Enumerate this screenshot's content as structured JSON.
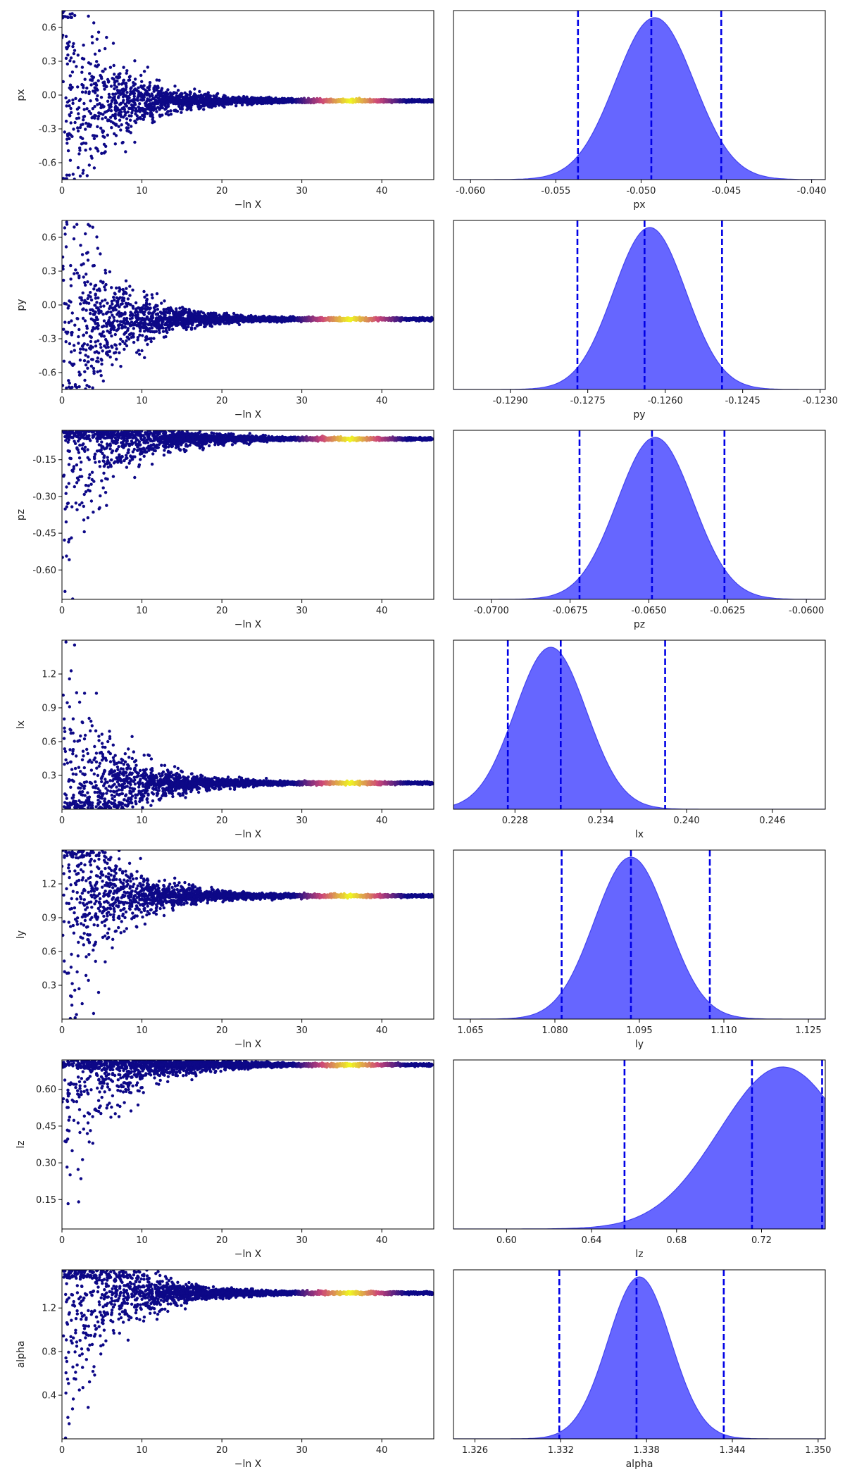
{
  "chart_data": [
    {
      "type": "scatter",
      "param": "px",
      "trace": {
        "xlabel": "−ln X",
        "ylabel": "px",
        "xlim": [
          0,
          46.5
        ],
        "ylim": [
          -0.75,
          0.75
        ],
        "xticks": [
          "0",
          "10",
          "20",
          "30",
          "40"
        ],
        "xtick_values": [
          0,
          10,
          20,
          30,
          40
        ],
        "yticks": [
          "-0.6",
          "-0.3",
          "0.0",
          "0.3",
          "0.6"
        ],
        "ytick_values": [
          -0.6,
          -0.3,
          0,
          0.3,
          0.6
        ],
        "converge": -0.05
      },
      "posterior": {
        "xlabel": "px",
        "xlim": [
          -0.061,
          -0.0392
        ],
        "xticks": [
          "-0.060",
          "-0.055",
          "-0.050",
          "-0.045",
          "-0.040"
        ],
        "xtick_values": [
          -0.06,
          -0.055,
          -0.05,
          -0.045,
          -0.04
        ],
        "mean": -0.0492,
        "sigma": 0.0023,
        "quantiles": [
          -0.0537,
          -0.0494,
          -0.0453
        ]
      }
    },
    {
      "type": "scatter",
      "param": "py",
      "trace": {
        "xlabel": "−ln X",
        "ylabel": "py",
        "xlim": [
          0,
          46.5
        ],
        "ylim": [
          -0.75,
          0.75
        ],
        "xticks": [
          "0",
          "10",
          "20",
          "30",
          "40"
        ],
        "xtick_values": [
          0,
          10,
          20,
          30,
          40
        ],
        "yticks": [
          "-0.6",
          "-0.3",
          "0.0",
          "0.3",
          "0.6"
        ],
        "ytick_values": [
          -0.6,
          -0.3,
          0,
          0.3,
          0.6
        ],
        "converge": -0.126
      },
      "posterior": {
        "xlabel": "py",
        "xlim": [
          -0.1301,
          -0.1229
        ],
        "xticks": [
          "-0.1290",
          "-0.1275",
          "-0.1260",
          "-0.1245",
          "-0.1230"
        ],
        "xtick_values": [
          -0.129,
          -0.1275,
          -0.126,
          -0.1245,
          -0.123
        ],
        "mean": -0.1263,
        "sigma": 0.0007,
        "quantiles": [
          -0.1277,
          -0.1264,
          -0.1249
        ]
      }
    },
    {
      "type": "scatter",
      "param": "pz",
      "trace": {
        "xlabel": "−ln X",
        "ylabel": "pz",
        "xlim": [
          0,
          46.5
        ],
        "ylim": [
          -0.72,
          -0.03
        ],
        "xticks": [
          "0",
          "10",
          "20",
          "30",
          "40"
        ],
        "xtick_values": [
          0,
          10,
          20,
          30,
          40
        ],
        "yticks": [
          "-0.60",
          "-0.45",
          "-0.30",
          "-0.15"
        ],
        "ytick_values": [
          -0.6,
          -0.45,
          -0.3,
          -0.15
        ],
        "converge": -0.065
      },
      "posterior": {
        "xlabel": "pz",
        "xlim": [
          -0.0712,
          -0.0594
        ],
        "xticks": [
          "-0.0700",
          "-0.0675",
          "-0.0650",
          "-0.0625",
          "-0.0600"
        ],
        "xtick_values": [
          -0.07,
          -0.0675,
          -0.065,
          -0.0625,
          -0.06
        ],
        "mean": -0.0648,
        "sigma": 0.0012,
        "quantiles": [
          -0.0672,
          -0.0649,
          -0.0626
        ]
      }
    },
    {
      "type": "scatter",
      "param": "lx",
      "trace": {
        "xlabel": "−ln X",
        "ylabel": "lx",
        "xlim": [
          0,
          46.5
        ],
        "ylim": [
          0,
          1.5
        ],
        "xticks": [
          "0",
          "10",
          "20",
          "30",
          "40"
        ],
        "xtick_values": [
          0,
          10,
          20,
          30,
          40
        ],
        "yticks": [
          "0.3",
          "0.6",
          "0.9",
          "1.2"
        ],
        "ytick_values": [
          0.3,
          0.6,
          0.9,
          1.2
        ],
        "converge": 0.232
      },
      "posterior": {
        "xlabel": "lx",
        "xlim": [
          0.2237,
          0.2497
        ],
        "xticks": [
          "0.228",
          "0.234",
          "0.240",
          "0.246"
        ],
        "xtick_values": [
          0.228,
          0.234,
          0.24,
          0.246
        ],
        "mean": 0.2305,
        "sigma": 0.0025,
        "quantiles": [
          0.2275,
          0.2312,
          0.2385
        ]
      }
    },
    {
      "type": "scatter",
      "param": "ly",
      "trace": {
        "xlabel": "−ln X",
        "ylabel": "ly",
        "xlim": [
          0,
          46.5
        ],
        "ylim": [
          0,
          1.5
        ],
        "xticks": [
          "0",
          "10",
          "20",
          "30",
          "40"
        ],
        "xtick_values": [
          0,
          10,
          20,
          30,
          40
        ],
        "yticks": [
          "0.3",
          "0.6",
          "0.9",
          "1.2"
        ],
        "ytick_values": [
          0.3,
          0.6,
          0.9,
          1.2
        ],
        "converge": 1.094
      },
      "posterior": {
        "xlabel": "ly",
        "xlim": [
          1.062,
          1.128
        ],
        "xticks": [
          "1.065",
          "1.080",
          "1.095",
          "1.110",
          "1.125"
        ],
        "xtick_values": [
          1.065,
          1.08,
          1.095,
          1.11,
          1.125
        ],
        "mean": 1.0935,
        "sigma": 0.0065,
        "quantiles": [
          1.0812,
          1.0935,
          1.1075
        ]
      }
    },
    {
      "type": "scatter",
      "param": "lz",
      "trace": {
        "xlabel": "−ln X",
        "ylabel": "lz",
        "xlim": [
          0,
          46.5
        ],
        "ylim": [
          0.03,
          0.72
        ],
        "xticks": [
          "0",
          "10",
          "20",
          "30",
          "40"
        ],
        "xtick_values": [
          0,
          10,
          20,
          30,
          40
        ],
        "yticks": [
          "0.15",
          "0.30",
          "0.45",
          "0.60"
        ],
        "ytick_values": [
          0.15,
          0.3,
          0.45,
          0.6
        ],
        "converge": 0.7
      },
      "posterior": {
        "xlabel": "lz",
        "xlim": [
          0.575,
          0.75
        ],
        "xticks": [
          "0.60",
          "0.64",
          "0.68",
          "0.72"
        ],
        "xtick_values": [
          0.6,
          0.64,
          0.68,
          0.72
        ],
        "mean": 0.73,
        "sigma": 0.03,
        "quantiles": [
          0.6555,
          0.7155,
          0.7485
        ]
      }
    },
    {
      "type": "scatter",
      "param": "alpha",
      "trace": {
        "xlabel": "−ln X",
        "ylabel": "alpha",
        "xlim": [
          0,
          46.5
        ],
        "ylim": [
          0,
          1.55
        ],
        "xticks": [
          "0",
          "10",
          "20",
          "30",
          "40"
        ],
        "xtick_values": [
          0,
          10,
          20,
          30,
          40
        ],
        "yticks": [
          "0.4",
          "0.8",
          "1.2"
        ],
        "ytick_values": [
          0.4,
          0.8,
          1.2
        ],
        "converge": 1.337
      },
      "posterior": {
        "xlabel": "alpha",
        "xlim": [
          1.3245,
          1.3505
        ],
        "xticks": [
          "1.326",
          "1.332",
          "1.338",
          "1.344",
          "1.350"
        ],
        "xtick_values": [
          1.326,
          1.332,
          1.338,
          1.344,
          1.35
        ],
        "mean": 1.3375,
        "sigma": 0.0022,
        "quantiles": [
          1.3319,
          1.3373,
          1.3434
        ]
      }
    }
  ],
  "colors": {
    "scatter": "#0d0887",
    "fill": "#6666ff",
    "dashed": "#0000e6",
    "hot": "#f0f921",
    "warm": "#cc4778"
  }
}
